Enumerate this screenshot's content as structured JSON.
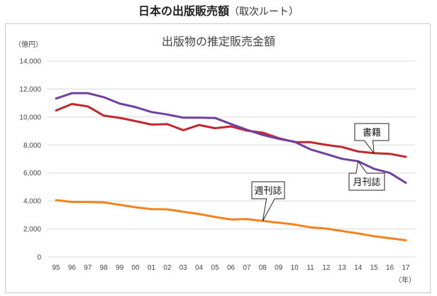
{
  "header": {
    "title": "日本の出版販売額",
    "subtitle": "（取次ルート）"
  },
  "chart_data": {
    "type": "line",
    "title": "出版物の推定販売金額",
    "ylabel": "（億円）",
    "xlabel": "（年）",
    "ylim": [
      0,
      14000
    ],
    "yticks": [
      0,
      2000,
      4000,
      6000,
      8000,
      10000,
      12000,
      14000
    ],
    "ytick_labels": [
      "0",
      "2,000",
      "4,000",
      "6,000",
      "8,000",
      "10,000",
      "12,000",
      "14,000"
    ],
    "grid": true,
    "legend": "none (direct callout labels)",
    "categories": [
      "95",
      "96",
      "97",
      "98",
      "99",
      "00",
      "01",
      "02",
      "03",
      "04",
      "05",
      "06",
      "07",
      "08",
      "09",
      "10",
      "11",
      "12",
      "13",
      "14",
      "15",
      "16",
      "17"
    ],
    "series": [
      {
        "name": "書籍",
        "color": "#c0282d",
        "values": [
          10470,
          10930,
          10760,
          10100,
          9940,
          9710,
          9460,
          9490,
          9060,
          9430,
          9200,
          9330,
          9030,
          8880,
          8490,
          8210,
          8200,
          8010,
          7850,
          7540,
          7420,
          7370,
          7150
        ],
        "callout": {
          "label": "書籍",
          "at": "15"
        }
      },
      {
        "name": "月刊誌",
        "color": "#7040a0",
        "values": [
          11320,
          11700,
          11700,
          11420,
          10960,
          10710,
          10360,
          10180,
          9950,
          9950,
          9930,
          9500,
          9090,
          8720,
          8440,
          8240,
          7690,
          7350,
          7010,
          6840,
          6300,
          6000,
          5300
        ],
        "callout": {
          "label": "月刊誌",
          "at": "14"
        }
      },
      {
        "name": "週刊誌",
        "color": "#f5821f",
        "values": [
          4060,
          3930,
          3930,
          3900,
          3730,
          3550,
          3420,
          3400,
          3230,
          3070,
          2860,
          2680,
          2710,
          2570,
          2450,
          2320,
          2120,
          2030,
          1850,
          1680,
          1480,
          1340,
          1190
        ],
        "callout": {
          "label": "週刊誌",
          "at": "08"
        }
      }
    ]
  }
}
